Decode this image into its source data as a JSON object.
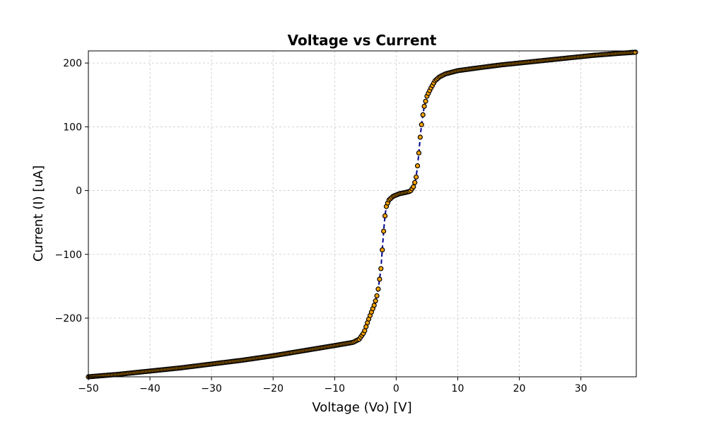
{
  "chart_data": {
    "type": "line",
    "title": "Voltage vs Current",
    "xlabel": "Voltage (Vo) [V]",
    "ylabel": "Current (I) [uA]",
    "xlim": [
      -50,
      39
    ],
    "ylim": [
      -292,
      219
    ],
    "x_ticks": [
      -50,
      -40,
      -30,
      -20,
      -10,
      0,
      10,
      20,
      30
    ],
    "x_tick_labels": [
      "−50",
      "−40",
      "−30",
      "−20",
      "−10",
      "0",
      "10",
      "20",
      "30"
    ],
    "y_ticks": [
      -200,
      -100,
      0,
      100,
      200
    ],
    "y_tick_labels": [
      "−200",
      "−100",
      "0",
      "100",
      "200"
    ],
    "grid": true,
    "line_color": "#00008b",
    "line_style": "dashed",
    "marker_fill": "#ffa500",
    "marker_edge": "#000000",
    "curve_points": [
      [
        -50,
        -292
      ],
      [
        -45,
        -288
      ],
      [
        -40,
        -283
      ],
      [
        -35,
        -278
      ],
      [
        -30,
        -272
      ],
      [
        -25,
        -266
      ],
      [
        -20,
        -259
      ],
      [
        -15,
        -251
      ],
      [
        -10,
        -243
      ],
      [
        -7,
        -238
      ],
      [
        -6,
        -233
      ],
      [
        -5.2,
        -222
      ],
      [
        -4.6,
        -205
      ],
      [
        -4,
        -190
      ],
      [
        -3.5,
        -178
      ],
      [
        -3,
        -160
      ],
      [
        -2.5,
        -125
      ],
      [
        -2.2,
        -85
      ],
      [
        -1.9,
        -45
      ],
      [
        -1.6,
        -25
      ],
      [
        -1.2,
        -15
      ],
      [
        -0.5,
        -9
      ],
      [
        0.5,
        -5
      ],
      [
        1.5,
        -3
      ],
      [
        2.3,
        -1
      ],
      [
        2.8,
        6
      ],
      [
        3.2,
        18
      ],
      [
        3.6,
        50
      ],
      [
        4,
        95
      ],
      [
        4.5,
        130
      ],
      [
        5,
        148
      ],
      [
        5.6,
        160
      ],
      [
        6.3,
        172
      ],
      [
        7,
        178
      ],
      [
        8,
        183
      ],
      [
        10,
        188
      ],
      [
        13,
        192
      ],
      [
        17,
        197
      ],
      [
        22,
        202
      ],
      [
        27,
        207
      ],
      [
        32,
        212
      ],
      [
        36,
        215
      ],
      [
        39,
        217
      ]
    ],
    "point_step": 0.22
  }
}
